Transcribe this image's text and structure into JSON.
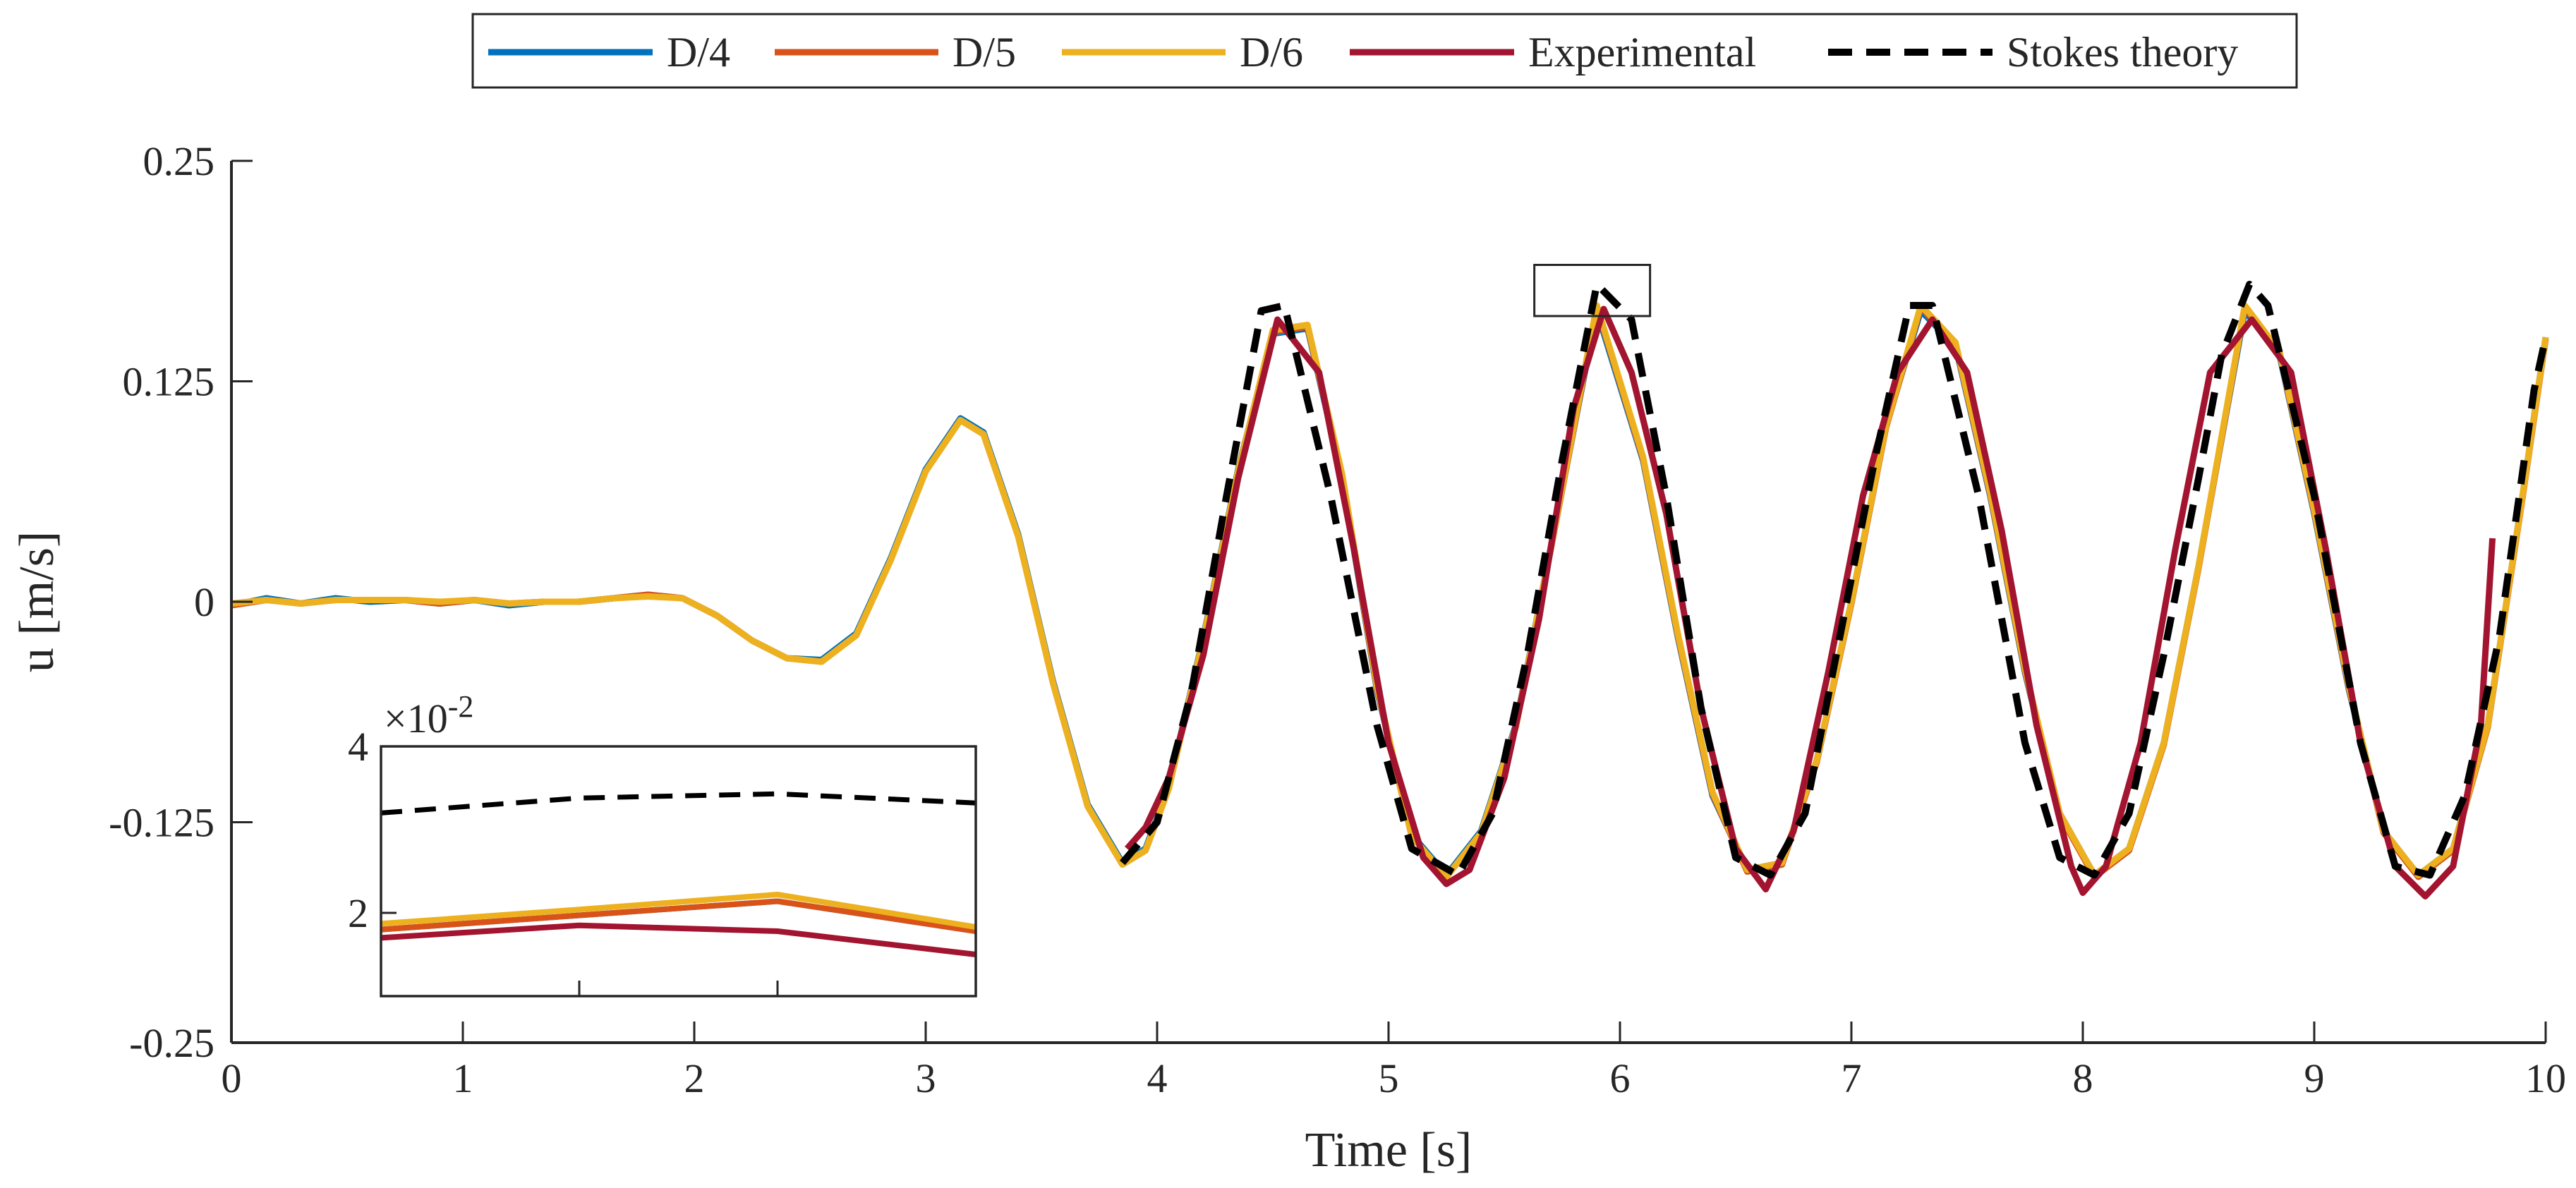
{
  "chart_data": {
    "type": "line",
    "title": "",
    "xlabel": "Time [s]",
    "ylabel": "u [m/s]",
    "xlim": [
      0,
      10
    ],
    "ylim": [
      -0.25,
      0.25
    ],
    "xticks": [
      0,
      1,
      2,
      3,
      4,
      5,
      6,
      7,
      8,
      9,
      10
    ],
    "xtick_labels": [
      "0",
      "1",
      "2",
      "3",
      "4",
      "5",
      "6",
      "7",
      "8",
      "9",
      "10"
    ],
    "yticks": [
      -0.25,
      -0.125,
      0,
      0.125,
      0.25
    ],
    "ytick_labels": [
      "-0.25",
      "-0.125",
      "0",
      "0.125",
      "0.25"
    ],
    "grid": false,
    "legend": {
      "placement": "top-center",
      "orientation": "horizontal",
      "entries": [
        "D/4",
        "D/5",
        "D/6",
        "Experimental",
        "Stokes theory"
      ]
    },
    "series": [
      {
        "name": "D/4",
        "color": "#0072BD",
        "style": "solid",
        "x": [
          0,
          0.15,
          0.3,
          0.45,
          0.6,
          0.75,
          0.9,
          1.05,
          1.2,
          1.35,
          1.5,
          1.65,
          1.8,
          1.95,
          2.1,
          2.25,
          2.4,
          2.55,
          2.7,
          2.85,
          3.0,
          3.15,
          3.25,
          3.4,
          3.55,
          3.7,
          3.85,
          3.95,
          4.05,
          4.2,
          4.35,
          4.5,
          4.65,
          4.8,
          4.95,
          5.1,
          5.25,
          5.4,
          5.55,
          5.7,
          5.9,
          6.1,
          6.25,
          6.4,
          6.55,
          6.7,
          6.85,
          7.0,
          7.15,
          7.3,
          7.45,
          7.6,
          7.75,
          7.9,
          8.05,
          8.2,
          8.35,
          8.5,
          8.7,
          8.85,
          9.0,
          9.15,
          9.3,
          9.45,
          9.6,
          9.75,
          9.9,
          10.0
        ],
        "y": [
          -0.002,
          0.002,
          -0.001,
          0.002,
          0.0,
          0.001,
          -0.001,
          0.001,
          -0.002,
          0.0,
          0.0,
          0.002,
          0.004,
          0.002,
          -0.008,
          -0.022,
          -0.032,
          -0.033,
          -0.018,
          0.025,
          0.075,
          0.104,
          0.096,
          0.038,
          -0.045,
          -0.115,
          -0.148,
          -0.14,
          -0.105,
          -0.02,
          0.075,
          0.152,
          0.155,
          0.07,
          -0.05,
          -0.132,
          -0.155,
          -0.13,
          -0.07,
          0.03,
          0.165,
          0.08,
          -0.02,
          -0.11,
          -0.152,
          -0.148,
          -0.09,
          0.0,
          0.1,
          0.165,
          0.145,
          0.06,
          -0.04,
          -0.12,
          -0.155,
          -0.14,
          -0.08,
          0.02,
          0.165,
          0.14,
          0.05,
          -0.05,
          -0.13,
          -0.155,
          -0.14,
          -0.07,
          0.06,
          0.15
        ]
      },
      {
        "name": "D/5",
        "color": "#D95319",
        "style": "solid",
        "x": [
          0,
          0.15,
          0.3,
          0.45,
          0.6,
          0.75,
          0.9,
          1.05,
          1.2,
          1.35,
          1.5,
          1.65,
          1.8,
          1.95,
          2.1,
          2.25,
          2.4,
          2.55,
          2.7,
          2.85,
          3.0,
          3.15,
          3.25,
          3.4,
          3.55,
          3.7,
          3.85,
          3.95,
          4.05,
          4.2,
          4.35,
          4.5,
          4.65,
          4.8,
          4.95,
          5.1,
          5.25,
          5.4,
          5.55,
          5.7,
          5.9,
          6.1,
          6.25,
          6.4,
          6.55,
          6.7,
          6.85,
          7.0,
          7.15,
          7.3,
          7.45,
          7.6,
          7.75,
          7.9,
          8.05,
          8.2,
          8.35,
          8.5,
          8.7,
          8.85,
          9.0,
          9.15,
          9.3,
          9.45,
          9.6,
          9.75,
          9.9,
          10.0
        ],
        "y": [
          -0.002,
          0.001,
          -0.001,
          0.001,
          0.001,
          0.001,
          -0.001,
          0.001,
          -0.001,
          0.0,
          0.0,
          0.002,
          0.004,
          0.002,
          -0.008,
          -0.022,
          -0.032,
          -0.034,
          -0.019,
          0.024,
          0.074,
          0.103,
          0.095,
          0.037,
          -0.046,
          -0.116,
          -0.149,
          -0.141,
          -0.106,
          -0.021,
          0.074,
          0.153,
          0.156,
          0.071,
          -0.049,
          -0.133,
          -0.156,
          -0.131,
          -0.071,
          0.029,
          0.167,
          0.081,
          -0.019,
          -0.109,
          -0.153,
          -0.149,
          -0.091,
          -0.001,
          0.099,
          0.167,
          0.146,
          0.061,
          -0.039,
          -0.121,
          -0.156,
          -0.141,
          -0.081,
          0.019,
          0.167,
          0.141,
          0.051,
          -0.049,
          -0.131,
          -0.156,
          -0.141,
          -0.071,
          0.059,
          0.149
        ]
      },
      {
        "name": "D/6",
        "color": "#EDB120",
        "style": "solid",
        "x": [
          0,
          0.15,
          0.3,
          0.45,
          0.6,
          0.75,
          0.9,
          1.05,
          1.2,
          1.35,
          1.5,
          1.65,
          1.8,
          1.95,
          2.1,
          2.25,
          2.4,
          2.55,
          2.7,
          2.85,
          3.0,
          3.15,
          3.25,
          3.4,
          3.55,
          3.7,
          3.85,
          3.95,
          4.05,
          4.2,
          4.35,
          4.5,
          4.65,
          4.8,
          4.95,
          5.1,
          5.25,
          5.4,
          5.55,
          5.7,
          5.9,
          6.1,
          6.25,
          6.4,
          6.55,
          6.7,
          6.85,
          7.0,
          7.15,
          7.3,
          7.45,
          7.6,
          7.75,
          7.9,
          8.05,
          8.2,
          8.35,
          8.5,
          8.7,
          8.85,
          9.0,
          9.15,
          9.3,
          9.45,
          9.6,
          9.75,
          9.9,
          10.0
        ],
        "y": [
          -0.001,
          0.001,
          -0.001,
          0.001,
          0.001,
          0.001,
          0.0,
          0.001,
          -0.001,
          0.0,
          0.0,
          0.002,
          0.003,
          0.002,
          -0.008,
          -0.022,
          -0.032,
          -0.034,
          -0.019,
          0.024,
          0.074,
          0.103,
          0.095,
          0.037,
          -0.046,
          -0.116,
          -0.149,
          -0.141,
          -0.106,
          -0.021,
          0.074,
          0.154,
          0.157,
          0.072,
          -0.048,
          -0.133,
          -0.156,
          -0.131,
          -0.071,
          0.03,
          0.168,
          0.082,
          -0.018,
          -0.108,
          -0.152,
          -0.148,
          -0.09,
          0.0,
          0.1,
          0.168,
          0.147,
          0.062,
          -0.038,
          -0.12,
          -0.155,
          -0.14,
          -0.08,
          0.02,
          0.168,
          0.142,
          0.052,
          -0.048,
          -0.13,
          -0.155,
          -0.14,
          -0.07,
          0.06,
          0.15
        ]
      },
      {
        "name": "Experimental",
        "color": "#A2142F",
        "style": "solid",
        "x": [
          3.87,
          3.95,
          4.05,
          4.2,
          4.35,
          4.52,
          4.7,
          4.85,
          5.0,
          5.15,
          5.25,
          5.35,
          5.5,
          5.65,
          5.8,
          5.93,
          6.05,
          6.2,
          6.35,
          6.5,
          6.63,
          6.75,
          6.9,
          7.05,
          7.2,
          7.35,
          7.5,
          7.65,
          7.8,
          7.95,
          8.0,
          8.1,
          8.25,
          8.4,
          8.55,
          8.73,
          8.9,
          9.05,
          9.2,
          9.35,
          9.48,
          9.6,
          9.72,
          9.77
        ],
        "y": [
          -0.14,
          -0.128,
          -0.1,
          -0.03,
          0.07,
          0.16,
          0.13,
          0.03,
          -0.08,
          -0.145,
          -0.16,
          -0.152,
          -0.1,
          -0.01,
          0.11,
          0.166,
          0.13,
          0.05,
          -0.06,
          -0.14,
          -0.163,
          -0.13,
          -0.04,
          0.06,
          0.13,
          0.16,
          0.13,
          0.04,
          -0.07,
          -0.15,
          -0.165,
          -0.15,
          -0.08,
          0.03,
          0.13,
          0.16,
          0.13,
          0.03,
          -0.08,
          -0.15,
          -0.167,
          -0.15,
          -0.07,
          0.036
        ]
      },
      {
        "name": "Stokes theory",
        "color": "#000000",
        "style": "dashed",
        "x": [
          3.85,
          4.0,
          4.15,
          4.3,
          4.45,
          4.55,
          4.75,
          4.95,
          5.1,
          5.3,
          5.45,
          5.6,
          5.75,
          5.9,
          6.05,
          6.2,
          6.35,
          6.5,
          6.65,
          6.8,
          6.95,
          7.1,
          7.25,
          7.35,
          7.55,
          7.75,
          7.9,
          8.05,
          8.2,
          8.35,
          8.5,
          8.6,
          8.72,
          8.8,
          9.0,
          9.2,
          9.35,
          9.5,
          9.65,
          9.8,
          9.95,
          10.0
        ],
        "y": [
          -0.148,
          -0.125,
          -0.05,
          0.06,
          0.165,
          0.168,
          0.06,
          -0.07,
          -0.14,
          -0.155,
          -0.12,
          -0.03,
          0.08,
          0.18,
          0.16,
          0.06,
          -0.06,
          -0.145,
          -0.155,
          -0.12,
          -0.02,
          0.08,
          0.168,
          0.168,
          0.06,
          -0.08,
          -0.145,
          -0.155,
          -0.12,
          -0.03,
          0.07,
          0.14,
          0.18,
          0.168,
          0.06,
          -0.08,
          -0.15,
          -0.155,
          -0.11,
          -0.02,
          0.12,
          0.15
        ]
      }
    ],
    "zoom_box": {
      "xlim": [
        5.63,
        6.13
      ],
      "ylim": [
        0.162,
        0.191
      ]
    },
    "inset": {
      "type": "line",
      "multiplier_label": "×10",
      "multiplier_exponent": "-2",
      "ylim": [
        1.0,
        4.0
      ],
      "yticks": [
        2,
        4
      ],
      "ytick_labels": [
        "2",
        "4"
      ],
      "xlim": [
        0,
        3
      ],
      "xticks": [
        0,
        1,
        2,
        3
      ],
      "xtick_labels": [
        "",
        "",
        "",
        ""
      ],
      "grid": false,
      "series": [
        {
          "name": "D/4",
          "color": "#0072BD",
          "style": "solid",
          "x": [
            0,
            1,
            2,
            3
          ],
          "y": [
            1.8,
            1.97,
            2.14,
            1.78
          ]
        },
        {
          "name": "D/5",
          "color": "#D95319",
          "style": "solid",
          "x": [
            0,
            1,
            2,
            3
          ],
          "y": [
            1.8,
            1.97,
            2.14,
            1.78
          ]
        },
        {
          "name": "D/6",
          "color": "#EDB120",
          "style": "solid",
          "x": [
            0,
            1,
            2,
            3
          ],
          "y": [
            1.87,
            2.04,
            2.22,
            1.83
          ]
        },
        {
          "name": "Experimental",
          "color": "#A2142F",
          "style": "solid",
          "x": [
            0,
            1,
            2,
            3
          ],
          "y": [
            1.7,
            1.85,
            1.78,
            1.5
          ]
        },
        {
          "name": "Stokes theory",
          "color": "#000000",
          "style": "dashed",
          "x": [
            0,
            1,
            2,
            3
          ],
          "y": [
            3.2,
            3.38,
            3.43,
            3.32
          ]
        }
      ]
    }
  }
}
